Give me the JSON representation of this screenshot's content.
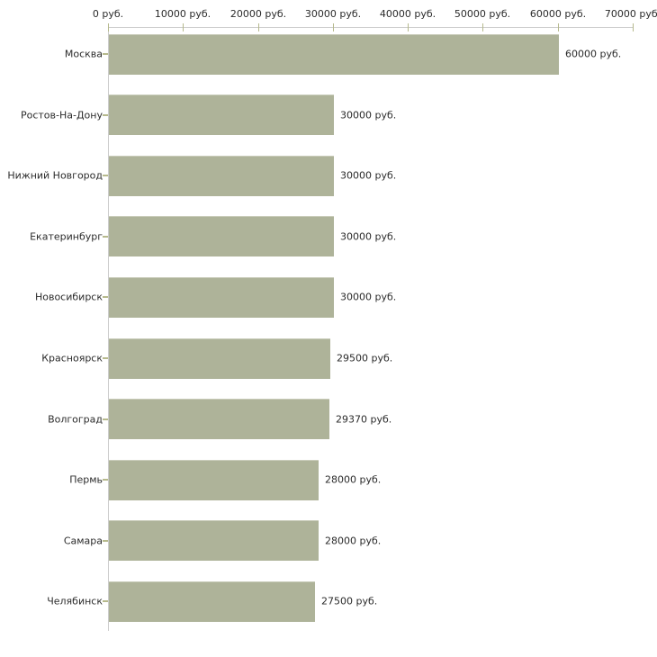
{
  "chart_data": {
    "type": "bar",
    "orientation": "horizontal",
    "title": "",
    "xlabel": "",
    "ylabel": "",
    "grid": false,
    "legend": false,
    "categories": [
      "Москва",
      "Ростов-На-Дону",
      "Нижний Новгород",
      "Екатеринбург",
      "Новосибирск",
      "Красноярск",
      "Волгоград",
      "Пермь",
      "Самара",
      "Челябинск"
    ],
    "values": [
      60000,
      30000,
      30000,
      30000,
      30000,
      29500,
      29370,
      28000,
      28000,
      27500
    ],
    "value_labels": [
      "60000 руб.",
      "30000 руб.",
      "30000 руб.",
      "30000 руб.",
      "30000 руб.",
      "29500 руб.",
      "29370 руб.",
      "28000 руб.",
      "28000 руб.",
      "27500 руб."
    ],
    "x_axis": {
      "position": "top",
      "range": [
        0,
        70000
      ],
      "ticks": [
        0,
        10000,
        20000,
        30000,
        40000,
        50000,
        60000,
        70000
      ],
      "tick_labels": [
        "0 руб.",
        "10000 руб.",
        "20000 руб.",
        "30000 руб.",
        "40000 руб.",
        "50000 руб.",
        "60000 руб.",
        "70000 руб."
      ]
    }
  },
  "style": {
    "bar_color": "#aeb399",
    "bar_top_edge_color": "#c9ccba",
    "axis_line_color": "#cccccc",
    "tick_color": "#b6b98c",
    "text_color": "#2b2b2b",
    "background": "#ffffff"
  }
}
